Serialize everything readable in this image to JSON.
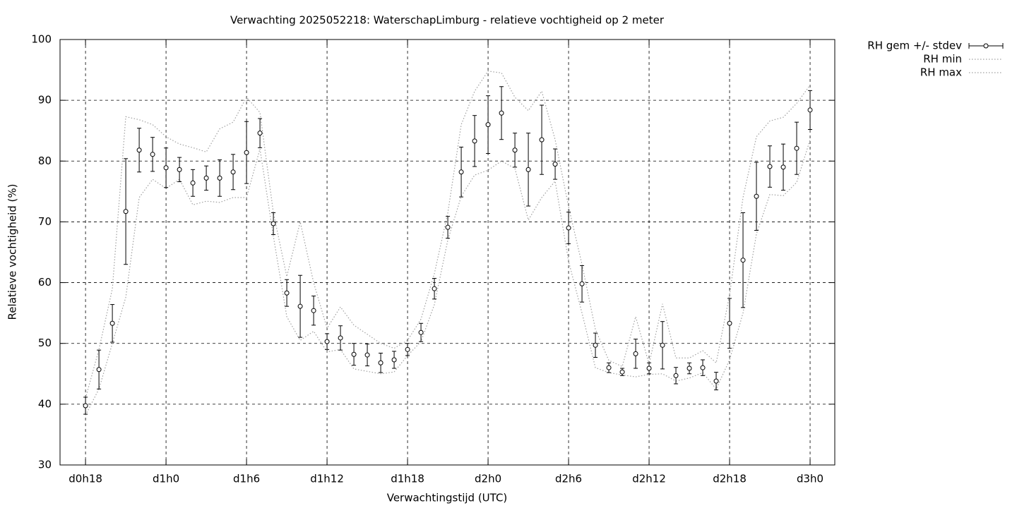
{
  "chart_data": {
    "type": "errorbar",
    "title": "Verwachting 2025052218: WaterschapLimburg - relatieve vochtigheid op 2 meter",
    "xlabel": "Verwachtingstijd (UTC)",
    "ylabel": "Relatieve vochtigheid (%)",
    "x": [
      18,
      19,
      20,
      21,
      22,
      23,
      24,
      25,
      26,
      27,
      28,
      29,
      30,
      31,
      32,
      33,
      34,
      35,
      36,
      37,
      38,
      39,
      40,
      41,
      42,
      43,
      44,
      45,
      46,
      47,
      48,
      49,
      50,
      51,
      52,
      53,
      54,
      55,
      56,
      57,
      58,
      59,
      60,
      61,
      62,
      63,
      64,
      65,
      66,
      67,
      68,
      69,
      70,
      71,
      72
    ],
    "series": [
      {
        "name": "RH gem +/- stdev",
        "color": "#000000",
        "values": [
          39.75,
          45.7,
          53.3,
          71.7,
          81.8,
          81.1,
          78.9,
          78.6,
          76.4,
          77.2,
          77.2,
          78.2,
          81.4,
          84.6,
          69.7,
          58.3,
          56.1,
          55.4,
          50.3,
          50.9,
          48.2,
          48.1,
          46.8,
          47.3,
          49.0,
          51.8,
          59.0,
          69.1,
          78.2,
          83.3,
          86.0,
          87.9,
          81.8,
          78.6,
          83.5,
          79.5,
          69.0,
          59.8,
          49.7,
          46.0,
          45.3,
          48.3,
          45.9,
          49.7,
          44.7,
          45.9,
          46.0,
          43.8,
          53.3,
          63.7,
          74.2,
          79.1,
          79.0,
          82.1,
          88.4
        ],
        "errors": [
          1.4,
          3.2,
          3.1,
          8.7,
          3.6,
          2.8,
          3.25,
          2.0,
          2.2,
          2.0,
          3.0,
          2.9,
          5.1,
          2.4,
          1.8,
          2.2,
          5.1,
          2.4,
          1.3,
          2.0,
          1.8,
          1.8,
          1.6,
          1.4,
          1.0,
          1.5,
          1.7,
          1.8,
          4.1,
          4.2,
          4.75,
          4.35,
          2.8,
          6.0,
          5.7,
          2.5,
          2.6,
          3.0,
          2.0,
          0.8,
          0.6,
          2.4,
          0.9,
          3.9,
          1.35,
          0.9,
          1.3,
          1.45,
          4.1,
          7.8,
          5.6,
          3.4,
          3.8,
          4.3,
          3.2
        ]
      },
      {
        "name": "RH min",
        "color": "#a0a0a0",
        "values": [
          38.2,
          42.5,
          50,
          57.6,
          74,
          77,
          75.5,
          77,
          72.8,
          73.4,
          73.2,
          74,
          74,
          82,
          67.6,
          54.4,
          50.5,
          52,
          48.6,
          49,
          45.8,
          45.4,
          45,
          45.3,
          48,
          50.3,
          56.4,
          67,
          74.2,
          77.7,
          78.5,
          80,
          78.8,
          70.3,
          74,
          76.7,
          63.5,
          55,
          46,
          45.2,
          44.8,
          44.5,
          44.9,
          45,
          43.8,
          44.3,
          45.2,
          42.5,
          47.3,
          55,
          68,
          74.5,
          74.3,
          76.5,
          83.5
        ]
      },
      {
        "name": "RH max",
        "color": "#a0a0a0",
        "values": [
          41,
          49,
          59,
          87.3,
          86.8,
          86,
          84,
          82.8,
          82.2,
          81.5,
          85.3,
          86.4,
          90.5,
          88,
          71.5,
          61,
          70,
          60,
          52.5,
          56,
          53,
          51.5,
          50,
          49.2,
          50.5,
          54,
          61.5,
          71.5,
          86,
          91.5,
          94.8,
          94.5,
          90.5,
          88.3,
          91.5,
          83.5,
          72.5,
          63,
          52.3,
          47.2,
          46.2,
          54.4,
          46.6,
          56.5,
          47.6,
          47.6,
          48.8,
          46.8,
          58,
          74,
          84,
          86.6,
          87.2,
          89.5,
          92.5
        ]
      }
    ],
    "xlim": [
      16.1,
      73.84
    ],
    "xticks": [
      {
        "value": 18,
        "label": "d0h18"
      },
      {
        "value": 24,
        "label": "d1h0"
      },
      {
        "value": 30,
        "label": "d1h6"
      },
      {
        "value": 36,
        "label": "d1h12"
      },
      {
        "value": 42,
        "label": "d1h18"
      },
      {
        "value": 48,
        "label": "d2h0"
      },
      {
        "value": 54,
        "label": "d2h6"
      },
      {
        "value": 60,
        "label": "d2h12"
      },
      {
        "value": 66,
        "label": "d2h18"
      },
      {
        "value": 72,
        "label": "d3h0"
      }
    ],
    "ylim": [
      30,
      100
    ],
    "yticks": [
      30,
      40,
      50,
      60,
      70,
      80,
      90,
      100
    ],
    "grid": true,
    "legend": "outside-top-right"
  }
}
